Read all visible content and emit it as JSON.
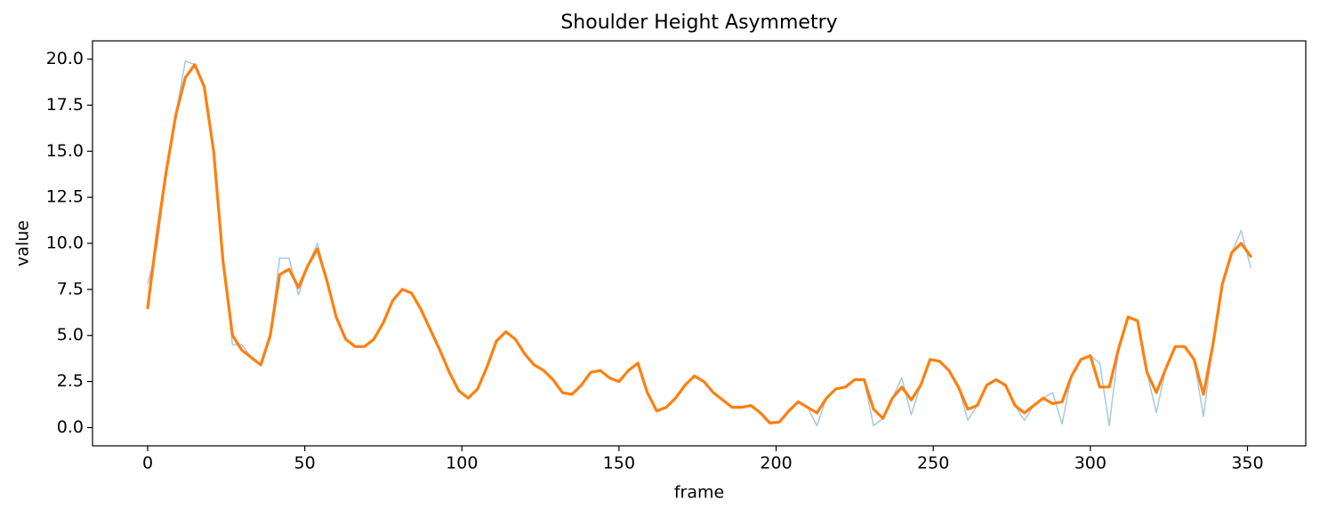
{
  "chart_data": {
    "type": "line",
    "title": "Shoulder Height Asymmetry",
    "xlabel": "frame",
    "ylabel": "value",
    "x": [
      0,
      3,
      6,
      9,
      12,
      15,
      18,
      21,
      24,
      27,
      30,
      33,
      36,
      39,
      42,
      45,
      48,
      51,
      54,
      57,
      60,
      63,
      66,
      69,
      72,
      75,
      78,
      81,
      84,
      87,
      90,
      93,
      96,
      99,
      102,
      105,
      108,
      111,
      114,
      117,
      120,
      123,
      126,
      129,
      132,
      135,
      138,
      141,
      144,
      147,
      150,
      153,
      156,
      159,
      162,
      165,
      168,
      171,
      174,
      177,
      180,
      183,
      186,
      189,
      192,
      195,
      198,
      201,
      204,
      207,
      210,
      213,
      216,
      219,
      222,
      225,
      228,
      231,
      234,
      237,
      240,
      243,
      246,
      249,
      252,
      255,
      258,
      261,
      264,
      267,
      270,
      273,
      276,
      279,
      282,
      285,
      288,
      291,
      294,
      297,
      300,
      303,
      306,
      309,
      312,
      315,
      318,
      321,
      324,
      327,
      330,
      333,
      336,
      339,
      342,
      345,
      348,
      351
    ],
    "series": [
      {
        "color": "#1f77b4",
        "values": [
          7.8,
          9.8,
          14,
          17,
          19.9,
          19.7,
          18.5,
          15,
          9,
          4.5,
          4.5,
          3.8,
          3.4,
          5,
          9.2,
          9.2,
          7.2,
          8.8,
          10.0,
          8,
          6,
          4.8,
          4.4,
          4.4,
          4.8,
          5.7,
          6.9,
          7.5,
          7.3,
          6.4,
          5.3,
          4.2,
          3,
          2,
          1.6,
          2.1,
          3.3,
          4.7,
          5.2,
          4.8,
          4,
          3.4,
          3.1,
          2.6,
          1.9,
          1.8,
          2.3,
          3,
          3.1,
          2.7,
          2.5,
          3.1,
          3.5,
          1.9,
          0.9,
          1.1,
          1.6,
          2.3,
          2.8,
          2.5,
          1.9,
          1.5,
          1.1,
          1.1,
          1.2,
          0.8,
          0.25,
          0.3,
          0.9,
          1.4,
          1.1,
          0.1,
          1.6,
          2.1,
          2.2,
          2.6,
          2.6,
          0.1,
          0.5,
          1.6,
          2.7,
          0.7,
          2.3,
          3.7,
          3.6,
          3.1,
          2.2,
          0.4,
          1.2,
          2.3,
          2.6,
          2.3,
          1.2,
          0.4,
          1.2,
          1.6,
          1.9,
          0.2,
          2.8,
          3.7,
          3.9,
          3.5,
          0.1,
          4.3,
          6.0,
          5.8,
          3.0,
          0.8,
          3.2,
          4.4,
          4.4,
          3.7,
          0.6,
          4.5,
          7.8,
          9.5,
          10.7,
          8.7
        ]
      },
      {
        "color": "#ff7f0e",
        "values": [
          6.5,
          10.5,
          14,
          17,
          19,
          19.7,
          18.5,
          15,
          9,
          5,
          4.2,
          3.8,
          3.4,
          5,
          8.3,
          8.6,
          7.6,
          8.8,
          9.7,
          8,
          6,
          4.8,
          4.4,
          4.4,
          4.8,
          5.7,
          6.9,
          7.5,
          7.3,
          6.4,
          5.3,
          4.2,
          3,
          2,
          1.6,
          2.1,
          3.3,
          4.7,
          5.2,
          4.8,
          4,
          3.4,
          3.1,
          2.6,
          1.9,
          1.8,
          2.3,
          3,
          3.1,
          2.7,
          2.5,
          3.1,
          3.5,
          1.9,
          0.9,
          1.1,
          1.6,
          2.3,
          2.8,
          2.5,
          1.9,
          1.5,
          1.1,
          1.1,
          1.2,
          0.8,
          0.25,
          0.3,
          0.9,
          1.4,
          1.1,
          0.8,
          1.6,
          2.1,
          2.2,
          2.6,
          2.6,
          1.0,
          0.5,
          1.6,
          2.2,
          1.5,
          2.3,
          3.7,
          3.6,
          3.1,
          2.2,
          1.0,
          1.2,
          2.3,
          2.6,
          2.3,
          1.2,
          0.8,
          1.2,
          1.6,
          1.3,
          1.4,
          2.8,
          3.7,
          3.9,
          2.2,
          2.2,
          4.3,
          6.0,
          5.8,
          3.0,
          1.9,
          3.2,
          4.4,
          4.4,
          3.7,
          1.8,
          4.5,
          7.8,
          9.5,
          10.0,
          9.3
        ]
      }
    ],
    "xlim": [
      -17.55,
      368.55
    ],
    "ylim": [
      -0.99,
      20.99
    ],
    "xticks": [
      0,
      50,
      100,
      150,
      200,
      250,
      300,
      350
    ],
    "yticks": [
      {
        "value": 0,
        "label": "0.0"
      },
      {
        "value": 2.5,
        "label": "2.5"
      },
      {
        "value": 5,
        "label": "5.0"
      },
      {
        "value": 7.5,
        "label": "7.5"
      },
      {
        "value": 10,
        "label": "10.0"
      },
      {
        "value": 12.5,
        "label": "12.5"
      },
      {
        "value": 15,
        "label": "15.0"
      },
      {
        "value": 17.5,
        "label": "17.5"
      },
      {
        "value": 20,
        "label": "20.0"
      }
    ]
  }
}
